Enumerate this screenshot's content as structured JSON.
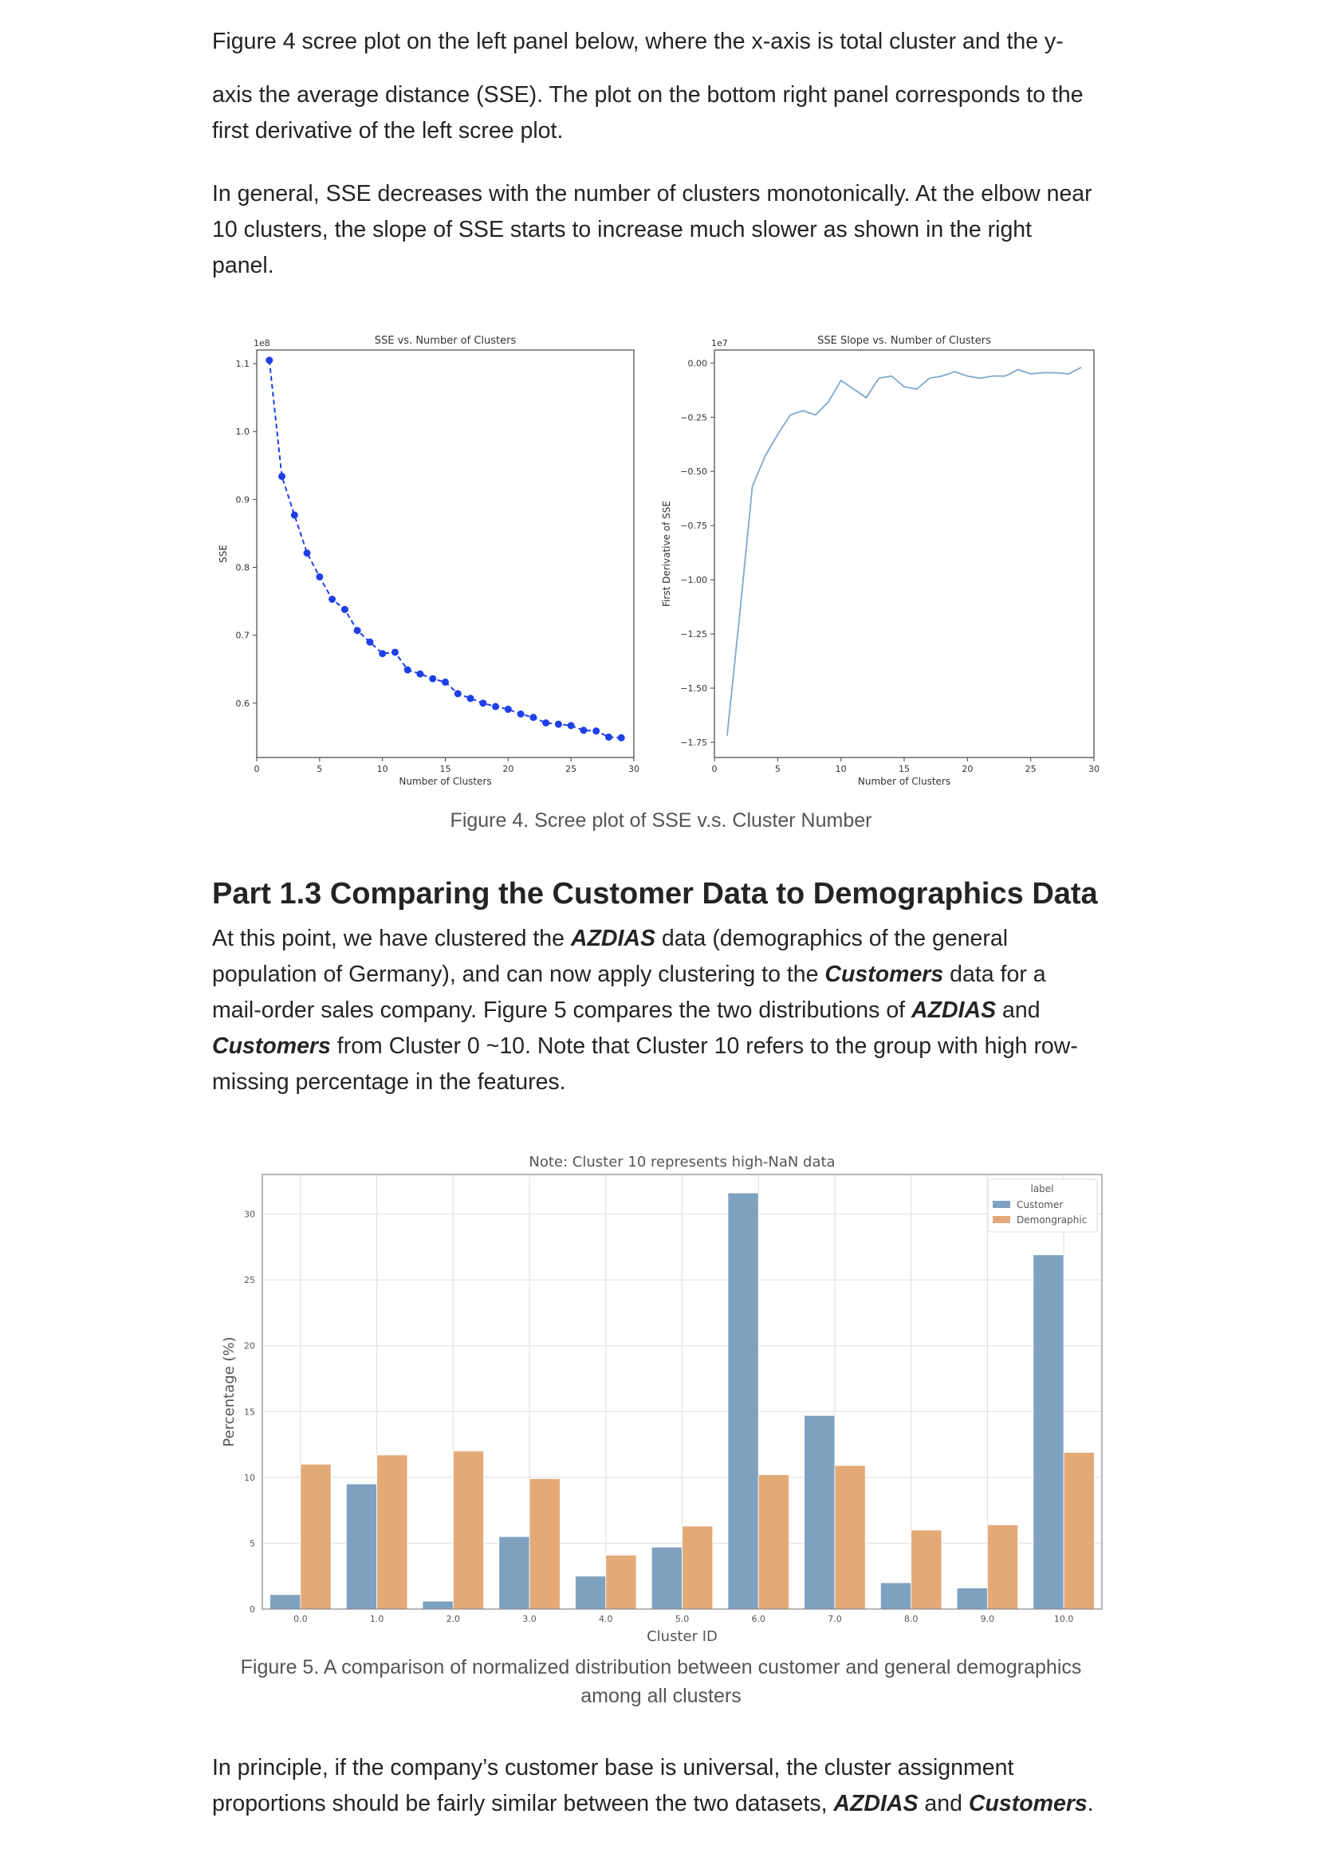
{
  "intro": {
    "para1_cut": "Figure 4 scree plot on the left panel below, where the x-axis is total cluster and the y-",
    "para1_line2": "axis the average distance (SSE). The plot on the bottom right panel corresponds to the",
    "para1_line3": "first derivative of the left scree plot.",
    "para2_line1": "In general, SSE decreases with the number of clusters monotonically. At the elbow near",
    "para2_line2": "10 clusters, the slope of SSE starts to increase much slower as shown in the right",
    "para2_line3": "panel."
  },
  "figure4": {
    "caption": "Figure 4. Scree plot of SSE v.s. Cluster Number"
  },
  "section": {
    "heading": "Part 1.3 Comparing the Customer Data to Demographics Data",
    "p_l1_a": "At this point, we have clustered the ",
    "p_l1_b": "AZDIAS",
    "p_l1_c": " data (demographics of the general",
    "p_l2_a": "population of Germany), and can now apply clustering to the ",
    "p_l2_b": "Customers",
    "p_l2_c": " data for a",
    "p_l3_a": "mail-order sales company. Figure 5 compares the two distributions of ",
    "p_l3_b": "AZDIAS",
    "p_l3_c": " and",
    "p_l4_a": "Customers",
    "p_l4_b": " from Cluster 0 ~10. Note that Cluster 10 refers to the group with high row-",
    "p_l5": "missing percentage in the features."
  },
  "figure5": {
    "caption_l1": "Figure 5. A comparison of normalized distribution between customer and general demographics",
    "caption_l2": "among all clusters"
  },
  "outro": {
    "l1": "In principle, if the company’s customer base is universal, the cluster assignment",
    "l2_a": "proportions should be fairly similar between the two datasets, ",
    "l2_b": "AZDIAS",
    "l2_c": " and ",
    "l2_d": "Customers",
    "l2_e": "."
  },
  "chart_data": [
    {
      "type": "line",
      "title": "SSE vs. Number of Clusters",
      "xlabel": "Number of Clusters",
      "ylabel": "SSE",
      "offset_label": "1e8",
      "xlim": [
        0,
        30
      ],
      "ylim": [
        0.52,
        1.12
      ],
      "xticks": [
        "0",
        "5",
        "10",
        "15",
        "20",
        "25",
        "30"
      ],
      "yticks": [
        "0.6",
        "0.7",
        "0.8",
        "0.9",
        "1.0",
        "1.1"
      ],
      "color": "#1f3fe8",
      "style": "dashed with circle markers",
      "x": [
        1,
        2,
        3,
        4,
        5,
        6,
        7,
        8,
        9,
        10,
        11,
        12,
        13,
        14,
        15,
        16,
        17,
        18,
        19,
        20,
        21,
        22,
        23,
        24,
        25,
        26,
        27,
        28,
        29
      ],
      "y": [
        1.105,
        0.934,
        0.877,
        0.821,
        0.786,
        0.753,
        0.738,
        0.707,
        0.69,
        0.673,
        0.675,
        0.649,
        0.643,
        0.636,
        0.631,
        0.614,
        0.607,
        0.6,
        0.595,
        0.591,
        0.584,
        0.579,
        0.571,
        0.569,
        0.567,
        0.56,
        0.559,
        0.55,
        0.549
      ]
    },
    {
      "type": "line",
      "title": "SSE Slope vs. Number of Clusters",
      "xlabel": "Number of Clusters",
      "ylabel": "First Derivative of SSE",
      "offset_label": "1e7",
      "xlim": [
        0,
        30
      ],
      "ylim": [
        -1.82,
        0.06
      ],
      "xticks": [
        "0",
        "5",
        "10",
        "15",
        "20",
        "25",
        "30"
      ],
      "yticks": [
        "0.00",
        "−0.25",
        "−0.50",
        "−0.75",
        "−1.00",
        "−1.25",
        "−1.50",
        "−1.75"
      ],
      "color": "#7fa8cf",
      "x": [
        1,
        2,
        3,
        4,
        5,
        6,
        7,
        8,
        9,
        10,
        11,
        12,
        13,
        14,
        15,
        16,
        17,
        18,
        19,
        20,
        21,
        22,
        23,
        24,
        25,
        26,
        27,
        28,
        29
      ],
      "y": [
        -1.72,
        -1.16,
        -0.57,
        -0.43,
        -0.33,
        -0.24,
        -0.22,
        -0.24,
        -0.18,
        -0.08,
        -0.12,
        -0.16,
        -0.07,
        -0.06,
        -0.11,
        -0.12,
        -0.07,
        -0.06,
        -0.04,
        -0.06,
        -0.07,
        -0.06,
        -0.06,
        -0.03,
        -0.05,
        -0.045,
        -0.045,
        -0.05,
        -0.02
      ]
    },
    {
      "type": "bar",
      "title": "Note: Cluster 10 represents high-NaN data",
      "xlabel": "Cluster ID",
      "ylabel": "Percentage (%)",
      "ylim": [
        0,
        33
      ],
      "yticks": [
        "0",
        "5",
        "10",
        "15",
        "20",
        "25",
        "30"
      ],
      "categories": [
        "0.0",
        "1.0",
        "2.0",
        "3.0",
        "4.0",
        "5.0",
        "6.0",
        "7.0",
        "8.0",
        "9.0",
        "10.0"
      ],
      "legend_title": "label",
      "legend_position": "top-right",
      "grid": true,
      "series": [
        {
          "name": "Customer",
          "color": "#7fa1c0",
          "values": [
            1.1,
            9.5,
            0.6,
            5.5,
            2.5,
            4.7,
            31.6,
            14.7,
            2.0,
            1.6,
            26.9
          ]
        },
        {
          "name": "Demongraphic",
          "color": "#e3aa78",
          "values": [
            11.0,
            11.7,
            12.0,
            9.9,
            4.1,
            6.3,
            10.2,
            10.9,
            6.0,
            6.4,
            11.9
          ]
        }
      ]
    }
  ]
}
